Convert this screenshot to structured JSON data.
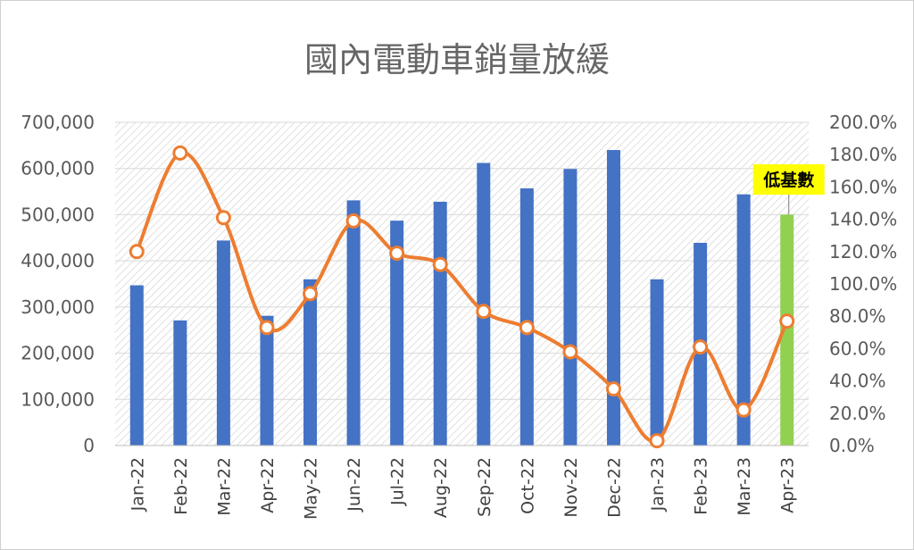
{
  "chart_data": {
    "type": "bar",
    "title": "國內電動車銷量放緩",
    "categories": [
      "Jan-22",
      "Feb-22",
      "Mar-22",
      "Apr-22",
      "May-22",
      "Jun-22",
      "Jul-22",
      "Aug-22",
      "Sep-22",
      "Oct-22",
      "Nov-22",
      "Dec-22",
      "Jan-23",
      "Feb-23",
      "Mar-23",
      "Apr-23"
    ],
    "series": [
      {
        "kind": "bar",
        "axis": "left",
        "values": [
          347000,
          271000,
          444000,
          281000,
          360000,
          531000,
          487000,
          528000,
          612000,
          557000,
          599000,
          640000,
          360000,
          439000,
          544000,
          500000
        ]
      },
      {
        "kind": "line",
        "axis": "right",
        "values": [
          1.2,
          1.81,
          1.41,
          0.73,
          0.94,
          1.39,
          1.19,
          1.12,
          0.83,
          0.73,
          0.58,
          0.35,
          0.03,
          0.61,
          0.22,
          0.77
        ]
      }
    ],
    "highlight_index": 15,
    "annotation": {
      "text": "低基數",
      "category": "Apr-23"
    },
    "left_axis": {
      "min": 0,
      "max": 700000,
      "step": 100000,
      "tick_labels": [
        "0",
        "100,000",
        "200,000",
        "300,000",
        "400,000",
        "500,000",
        "600,000",
        "700,000"
      ]
    },
    "right_axis": {
      "min": 0,
      "max": 2.0,
      "step": 0.2,
      "tick_labels": [
        "0.0%",
        "20.0%",
        "40.0%",
        "60.0%",
        "80.0%",
        "100.0%",
        "120.0%",
        "140.0%",
        "160.0%",
        "180.0%",
        "200.0%"
      ]
    },
    "grid": true,
    "colors": {
      "bar": "#4472C4",
      "bar_highlight": "#92D050",
      "line": "#ED7D31",
      "marker_fill": "#FFFFFF",
      "annotation_bg": "#FFFF00",
      "title": "#666666",
      "grid": "#D9D9D9"
    }
  }
}
